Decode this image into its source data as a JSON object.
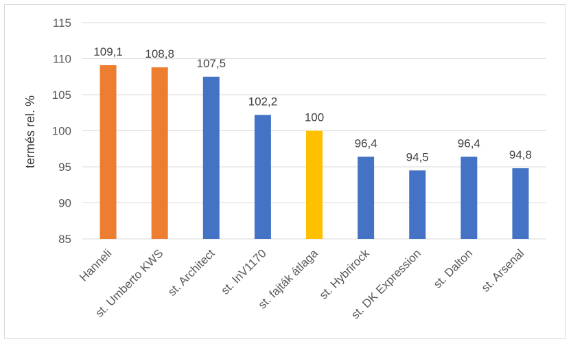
{
  "chart_data": {
    "type": "bar",
    "title": "",
    "xlabel": "",
    "ylabel": "termés rel. %",
    "ylim": [
      85,
      115
    ],
    "yticks": [
      85,
      90,
      95,
      100,
      105,
      110,
      115
    ],
    "grid": true,
    "legend": "none",
    "categories": [
      "Hanneli",
      "st. Umberto KWS",
      "st. Architect",
      "st. InV1170",
      "st. fajták átlaga",
      "st. Hybrirock",
      "st. DK Expression",
      "st. Dalton",
      "st. Arsenal"
    ],
    "values": [
      109.1,
      108.8,
      107.5,
      102.2,
      100,
      96.4,
      94.5,
      96.4,
      94.8
    ],
    "value_labels": [
      "109,1",
      "108,8",
      "107,5",
      "102,2",
      "100",
      "96,4",
      "94,5",
      "96,4",
      "94,8"
    ],
    "bar_colors": [
      "#ED7D31",
      "#ED7D31",
      "#4472C4",
      "#4472C4",
      "#FFC000",
      "#4472C4",
      "#4472C4",
      "#4472C4",
      "#4472C4"
    ],
    "gridline_color": "#d9d9d9"
  }
}
